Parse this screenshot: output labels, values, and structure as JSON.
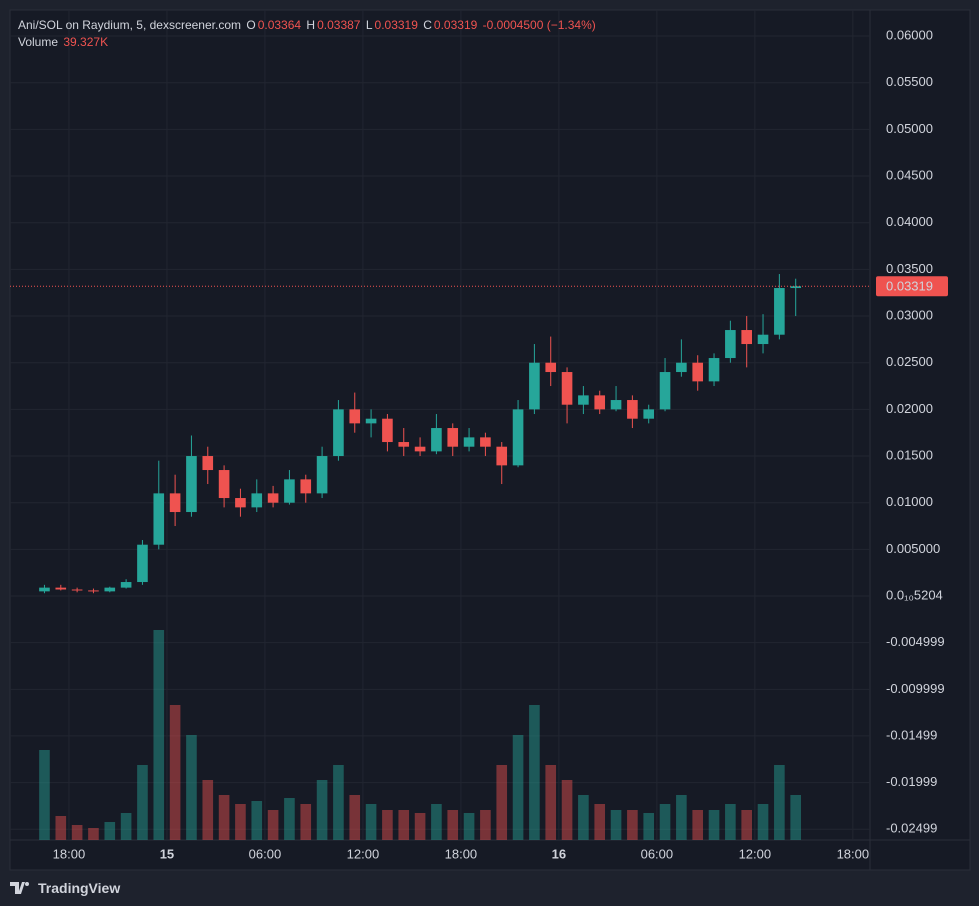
{
  "header": {
    "symbol": "Ani/SOL on Raydium, 5, dexscreener.com",
    "o_label": "O",
    "open": "0.03364",
    "h_label": "H",
    "high": "0.03387",
    "l_label": "L",
    "low": "0.03319",
    "c_label": "C",
    "close": "0.03319",
    "change": "-0.0004500 (−1.34%)",
    "volume_label": "Volume",
    "volume": "39.327K"
  },
  "footer": {
    "brand": "TradingView"
  },
  "chart_data": {
    "type": "candlestick",
    "up_color": "#26a69a",
    "down_color": "#ef5350",
    "xlim": [
      14.39,
      67.05
    ],
    "xticks": [
      {
        "value": 18,
        "label": "18:00"
      },
      {
        "value": 24,
        "label": "15"
      },
      {
        "value": 30,
        "label": "06:00"
      },
      {
        "value": 36,
        "label": "12:00"
      },
      {
        "value": 42,
        "label": "18:00"
      },
      {
        "value": 48,
        "label": "16"
      },
      {
        "value": 54,
        "label": "06:00"
      },
      {
        "value": 60,
        "label": "12:00"
      },
      {
        "value": 66,
        "label": "18:00"
      }
    ],
    "ylim": [
      -0.02614,
      0.06279
    ],
    "yticks": [
      {
        "value": 0.06,
        "label": "0.06000"
      },
      {
        "value": 0.055,
        "label": "0.05500"
      },
      {
        "value": 0.05,
        "label": "0.05000"
      },
      {
        "value": 0.045,
        "label": "0.04500"
      },
      {
        "value": 0.04,
        "label": "0.04000"
      },
      {
        "value": 0.035,
        "label": "0.03500"
      },
      {
        "value": 0.03,
        "label": "0.03000"
      },
      {
        "value": 0.025,
        "label": "0.02500"
      },
      {
        "value": 0.02,
        "label": "0.02000"
      },
      {
        "value": 0.015,
        "label": "0.01500"
      },
      {
        "value": 0.01,
        "label": "0.01000"
      },
      {
        "value": 0.005,
        "label": "0.005000"
      },
      {
        "value": 0,
        "label": "0.0₁₀5204"
      },
      -0.004999,
      -0.009999,
      -0.01499,
      -0.01999,
      -0.02499
    ],
    "volume_lim": [
      0,
      8000000
    ],
    "grid": true,
    "candles": {
      "x": [
        16.5,
        17.5,
        18.5,
        19.5,
        20.5,
        21.5,
        22.5,
        23.5,
        24.5,
        25.5,
        26.5,
        27.5,
        28.5,
        29.5,
        30.5,
        31.5,
        32.5,
        33.5,
        34.5,
        35.5,
        36.5,
        37.5,
        38.5,
        39.5,
        40.5,
        41.5,
        42.5,
        43.5,
        44.5,
        45.5,
        46.5,
        47.5,
        48.5,
        49.5,
        50.5,
        51.5,
        52.5,
        53.5,
        54.5,
        55.5,
        56.5,
        57.5,
        58.5,
        59.5,
        60.5,
        61.5,
        62.5
      ],
      "open": [
        0.0005,
        0.0009,
        0.0007,
        0.0006,
        0.0005,
        0.0009,
        0.0015,
        0.0055,
        0.011,
        0.009,
        0.015,
        0.0135,
        0.0105,
        0.0095,
        0.011,
        0.01,
        0.0125,
        0.011,
        0.015,
        0.02,
        0.0185,
        0.019,
        0.0165,
        0.016,
        0.0155,
        0.018,
        0.016,
        0.017,
        0.016,
        0.014,
        0.02,
        0.025,
        0.024,
        0.0205,
        0.0215,
        0.02,
        0.021,
        0.019,
        0.02,
        0.024,
        0.025,
        0.023,
        0.0255,
        0.0285,
        0.027,
        0.028,
        0.033
      ],
      "high": [
        0.0012,
        0.0012,
        0.0009,
        0.0008,
        0.001,
        0.0018,
        0.006,
        0.0145,
        0.013,
        0.0172,
        0.016,
        0.014,
        0.0115,
        0.0125,
        0.0118,
        0.0135,
        0.013,
        0.016,
        0.021,
        0.0218,
        0.02,
        0.0195,
        0.018,
        0.017,
        0.0195,
        0.0185,
        0.018,
        0.0175,
        0.0165,
        0.021,
        0.027,
        0.0278,
        0.0245,
        0.0225,
        0.022,
        0.0225,
        0.0215,
        0.0205,
        0.0255,
        0.0275,
        0.0258,
        0.026,
        0.0295,
        0.03,
        0.0302,
        0.0345,
        0.034
      ],
      "low": [
        0.0003,
        0.0006,
        0.0004,
        0.0003,
        0.0004,
        0.0008,
        0.0012,
        0.005,
        0.0075,
        0.0085,
        0.012,
        0.0095,
        0.0085,
        0.009,
        0.0095,
        0.0098,
        0.01,
        0.0105,
        0.0145,
        0.0175,
        0.017,
        0.0155,
        0.015,
        0.015,
        0.0152,
        0.015,
        0.0155,
        0.015,
        0.012,
        0.0138,
        0.0195,
        0.0225,
        0.0185,
        0.0195,
        0.0195,
        0.0198,
        0.018,
        0.0185,
        0.0198,
        0.0235,
        0.022,
        0.0225,
        0.025,
        0.0245,
        0.026,
        0.0275,
        0.03
      ],
      "close": [
        0.0009,
        0.0007,
        0.0006,
        0.0005,
        0.0009,
        0.0015,
        0.0055,
        0.011,
        0.009,
        0.015,
        0.0135,
        0.0105,
        0.0095,
        0.011,
        0.01,
        0.0125,
        0.011,
        0.015,
        0.02,
        0.0185,
        0.019,
        0.0165,
        0.016,
        0.0155,
        0.018,
        0.016,
        0.017,
        0.016,
        0.014,
        0.02,
        0.025,
        0.024,
        0.0205,
        0.0215,
        0.02,
        0.021,
        0.019,
        0.02,
        0.024,
        0.025,
        0.023,
        0.0255,
        0.0285,
        0.027,
        0.028,
        0.033,
        0.03319
      ],
      "volume": [
        3000000,
        800000,
        500000,
        400000,
        600000,
        900000,
        2500000,
        7000000,
        4500000,
        3500000,
        2000000,
        1500000,
        1200000,
        1300000,
        1000000,
        1400000,
        1200000,
        2000000,
        2500000,
        1500000,
        1200000,
        1000000,
        1000000,
        900000,
        1200000,
        1000000,
        900000,
        1000000,
        2500000,
        3500000,
        4500000,
        2500000,
        2000000,
        1500000,
        1200000,
        1000000,
        1000000,
        900000,
        1200000,
        1500000,
        1000000,
        1000000,
        1200000,
        1000000,
        1200000,
        2500000,
        1500000
      ]
    }
  }
}
